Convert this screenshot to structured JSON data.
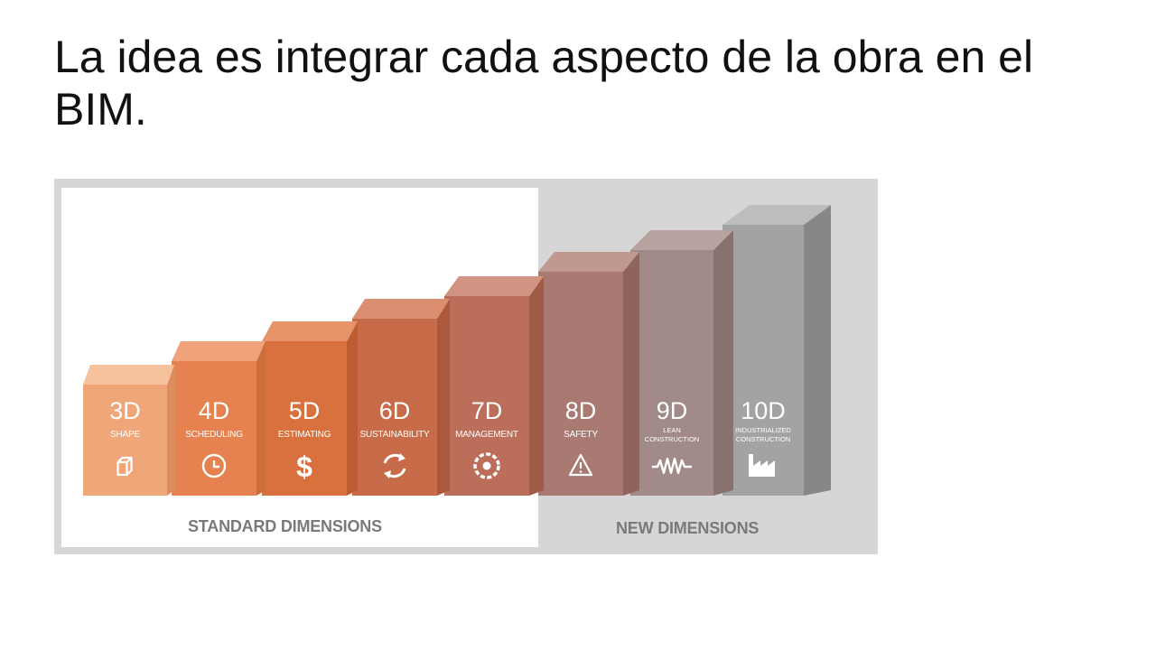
{
  "slide": {
    "title": "La idea es integrar cada aspecto de la obra en el BIM."
  },
  "groups": {
    "standard": "STANDARD DIMENSIONS",
    "new": "NEW DIMENSIONS"
  },
  "dimensions": [
    {
      "num": "3D",
      "label": [
        "SHAPE"
      ],
      "icon": "cube-icon",
      "front": "#efa77a",
      "top": "#f6c29c",
      "side": "#dc8d5e"
    },
    {
      "num": "4D",
      "label": [
        "SCHEDULING"
      ],
      "icon": "clock-icon",
      "front": "#e6824f",
      "top": "#f0a27a",
      "side": "#cc6d3c"
    },
    {
      "num": "5D",
      "label": [
        "ESTIMATING"
      ],
      "icon": "dollar-icon",
      "front": "#d9713f",
      "top": "#e8946a",
      "side": "#bd5d31"
    },
    {
      "num": "6D",
      "label": [
        "SUSTAINABILITY"
      ],
      "icon": "recycle-icon",
      "front": "#c86b48",
      "top": "#db8e70",
      "side": "#ad583a"
    },
    {
      "num": "7D",
      "label": [
        "MANAGEMENT"
      ],
      "icon": "gear-icon",
      "front": "#bb6f5a",
      "top": "#d19483",
      "side": "#a05b48"
    },
    {
      "num": "8D",
      "label": [
        "SAFETY"
      ],
      "icon": "warning-icon",
      "front": "#a97a72",
      "top": "#bf9890",
      "side": "#90645d"
    },
    {
      "num": "9D",
      "label": [
        "LEAN",
        "CONSTRUCTION"
      ],
      "icon": "wave-icon",
      "front": "#a18a88",
      "top": "#b8a3a1",
      "side": "#877270"
    },
    {
      "num": "10D",
      "label": [
        "INDUSTRIALIZED",
        "CONSTRUCTION"
      ],
      "icon": "factory-icon",
      "front": "#a3a3a3",
      "top": "#bdbdbd",
      "side": "#878787"
    }
  ]
}
